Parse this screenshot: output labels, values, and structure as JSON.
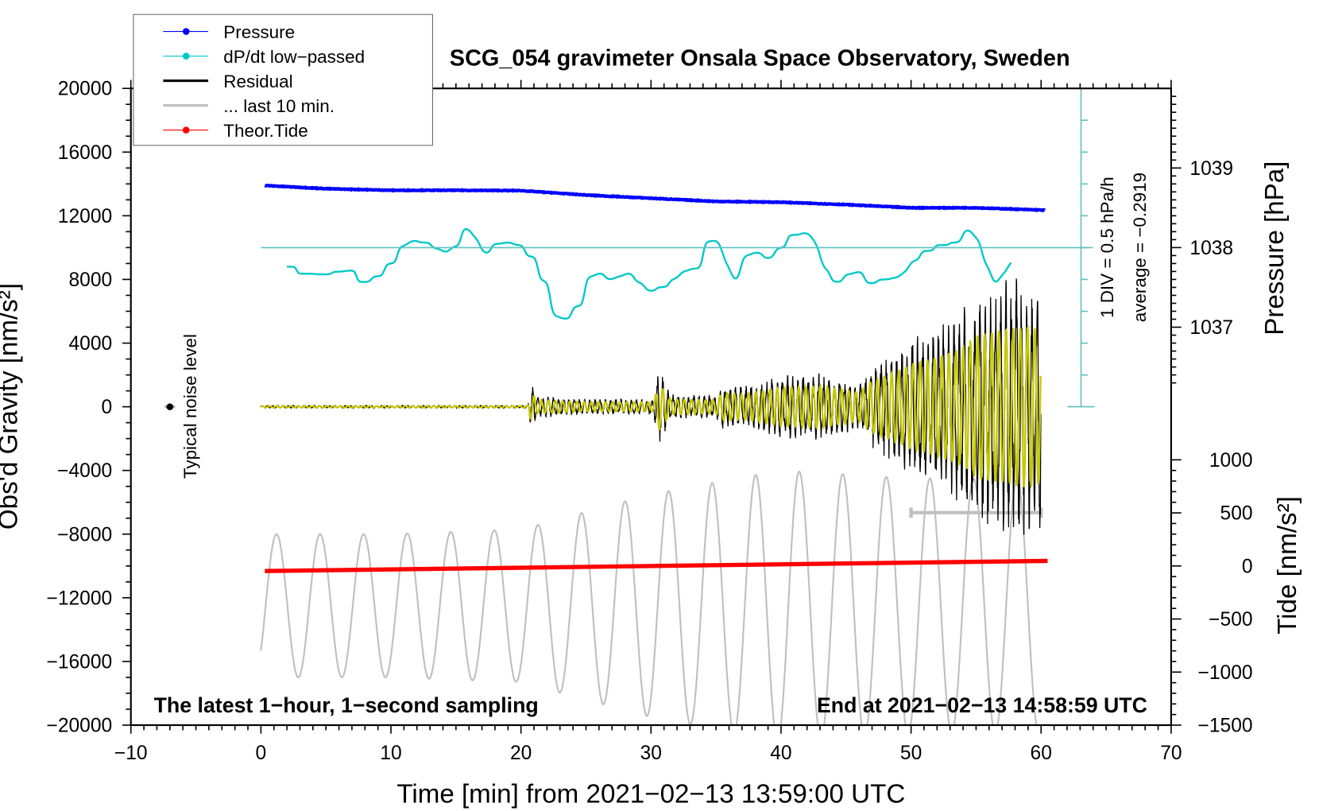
{
  "chart_data": {
    "type": "line",
    "title": "SCG_054 gravimeter Onsala Space Observatory, Sweden",
    "xlabel": "Time [min] from 2021−02−13 13:59:00 UTC",
    "ylabel_left": "Obs'd Gravity [nm/s²]",
    "ylabel_right_pressure": "Pressure [hPa]",
    "ylabel_right_tide": "Tide [nm/s²]",
    "xlim": [
      -10,
      70
    ],
    "ylim": [
      -20000,
      20000
    ],
    "x_ticks": {
      "values": [
        -10,
        0,
        10,
        20,
        30,
        40,
        50,
        60,
        70
      ],
      "labels": [
        "−10",
        "0",
        "10",
        "20",
        "30",
        "40",
        "50",
        "60",
        "70"
      ]
    },
    "y_ticks": {
      "values": [
        20000,
        16000,
        12000,
        8000,
        4000,
        0,
        -4000,
        -8000,
        -12000,
        -16000,
        -20000
      ],
      "labels": [
        "20000",
        "16000",
        "12000",
        "8000",
        "4000",
        "0",
        "−4000",
        "−8000",
        "−12000",
        "−16000",
        "−20000"
      ]
    },
    "pressure_ticks": {
      "values": [
        1039,
        1038,
        1037
      ],
      "labels": [
        "1039",
        "1038",
        "1037"
      ]
    },
    "tide_ticks": {
      "values": [
        1000,
        500,
        0,
        -500,
        -1000,
        -1500
      ],
      "labels": [
        "1000",
        "500",
        "0",
        "−500",
        "−1000",
        "−1500"
      ]
    },
    "legend": {
      "placement": "top-left",
      "entries": [
        {
          "label": "Pressure",
          "color": "#0000ff",
          "marker": true
        },
        {
          "label": "dP/dt low−passed",
          "color": "#00c8c8",
          "marker": true
        },
        {
          "label": "Residual",
          "color": "#000000",
          "marker": false
        },
        {
          "label": "... last 10 min.",
          "color": "#c0c0c0",
          "marker": false
        },
        {
          "label": "Theor.Tide",
          "color": "#ff0000",
          "marker": true
        }
      ]
    },
    "annotations": {
      "footer_left": "The latest 1−hour, 1−second sampling",
      "footer_right": "End at 2021−02−13 14:58:59 UTC",
      "dpdt_scale": "1 DIV = 0.5 hPa/h",
      "dpdt_average": "average = −0.2919",
      "noise_label": "Typical noise level"
    },
    "noise_level": {
      "x": -7,
      "y": 0,
      "half_range": 300
    },
    "series": [
      {
        "name": "Pressure",
        "unit": "hPa",
        "color": "#0000ff",
        "x": [
          0.3,
          5,
          10,
          15,
          20,
          25,
          30,
          35,
          40,
          45,
          50,
          55,
          60.3
        ],
        "y": [
          1038.78,
          1038.74,
          1038.72,
          1038.72,
          1038.716,
          1038.66,
          1038.62,
          1038.58,
          1038.57,
          1038.54,
          1038.5,
          1038.5,
          1038.47
        ]
      },
      {
        "name": "dP/dt low-passed",
        "unit": "hPa/h",
        "color": "#00c8c8",
        "zero_line": 0,
        "x": [
          2.0,
          3.5,
          4.8,
          6.1,
          6.7,
          8.0,
          9.0,
          10.0,
          11.0,
          11.6,
          12.6,
          13.6,
          14.2,
          14.9,
          15.9,
          16.5,
          17.2,
          18.2,
          19.0,
          19.8,
          20.8,
          21.8,
          22.7,
          23.4,
          24.4,
          25.4,
          26.0,
          26.9,
          27.6,
          28.3,
          29.1,
          29.9,
          30.9,
          31.9,
          32.5,
          33.5,
          34.5,
          35.2,
          35.8,
          36.5,
          37.3,
          38.1,
          39.1,
          39.9,
          41.0,
          42.0,
          42.7,
          43.3,
          44.3,
          45.3,
          45.9,
          46.9,
          47.9,
          48.9,
          49.5,
          50.2,
          51.2,
          52.4,
          53.5,
          54.4,
          55.1,
          55.8,
          56.5,
          57.1,
          57.8
        ],
        "y": [
          -0.3,
          -0.41,
          -0.42,
          -0.38,
          -0.36,
          -0.54,
          -0.45,
          -0.25,
          0.02,
          0.11,
          0.08,
          -0.01,
          -0.08,
          0.02,
          0.31,
          0.15,
          -0.09,
          0.06,
          0.08,
          0.04,
          -0.14,
          -0.52,
          -1.08,
          -1.12,
          -0.92,
          -0.46,
          -0.4,
          -0.5,
          -0.45,
          -0.4,
          -0.55,
          -0.68,
          -0.62,
          -0.5,
          -0.36,
          -0.33,
          0.1,
          0.12,
          -0.28,
          -0.52,
          -0.12,
          -0.08,
          -0.17,
          0.0,
          0.2,
          0.23,
          0.1,
          -0.36,
          -0.54,
          -0.42,
          -0.38,
          -0.56,
          -0.5,
          -0.48,
          -0.38,
          -0.2,
          -0.05,
          0.04,
          0.08,
          0.28,
          0.15,
          -0.28,
          -0.58,
          -0.4,
          -0.21
        ]
      },
      {
        "name": "Residual",
        "unit": "nm/s²",
        "color": "#000000",
        "representation": "envelope",
        "x": [
          0,
          20.5,
          20.8,
          21.2,
          25,
          30.2,
          30.6,
          31.5,
          35,
          35.5,
          37,
          40,
          43,
          46,
          47,
          49,
          50,
          52,
          54,
          55,
          57,
          59,
          60
        ],
        "amplitude": [
          80,
          80,
          1500,
          700,
          500,
          500,
          2500,
          800,
          700,
          1500,
          1300,
          2000,
          2200,
          1500,
          2700,
          3800,
          4500,
          5200,
          6200,
          7500,
          8000,
          8500,
          8000
        ],
        "period_min": 0.4
      },
      {
        "name": "Residual filtered",
        "unit": "nm/s²",
        "color": "#c8c800",
        "amplitude_ratio": 0.6,
        "period_min": 0.55
      },
      {
        "name": "... last 10 min.",
        "unit": "nm/s²",
        "color": "#c0c0c0",
        "representation": "envelope",
        "x": [
          0,
          10,
          20,
          30,
          40,
          50,
          60
        ],
        "center": -12500,
        "amplitude": [
          4500,
          4500,
          4800,
          7000,
          8500,
          8000,
          8000
        ],
        "period_min": 3.35,
        "clip_top": -4000,
        "bar": {
          "x": [
            50,
            60
          ],
          "y": -6650
        }
      },
      {
        "name": "Theor.Tide",
        "unit": "nm/s²",
        "color": "#ff0000",
        "x": [
          0.3,
          60.5
        ],
        "y": [
          -48,
          48
        ]
      }
    ]
  }
}
